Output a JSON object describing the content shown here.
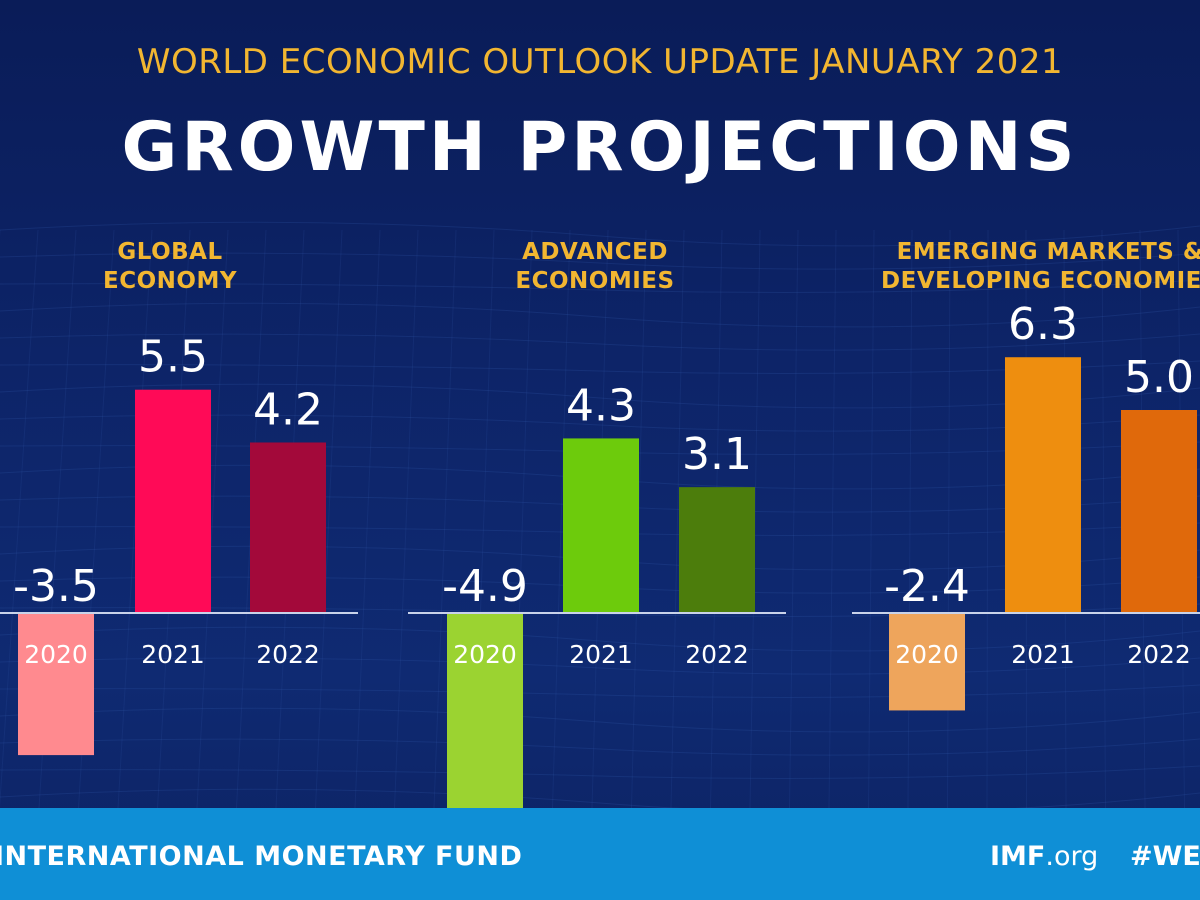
{
  "header": {
    "supertitle": "WORLD ECONOMIC OUTLOOK UPDATE JANUARY 2021",
    "title": "GROWTH PROJECTIONS"
  },
  "chart_data": [
    {
      "type": "bar",
      "title_lines": [
        "GLOBAL",
        "ECONOMY"
      ],
      "categories": [
        "2020",
        "2021",
        "2022"
      ],
      "values": [
        -3.5,
        5.5,
        4.2
      ],
      "labels": [
        "-3.5",
        "5.5",
        "4.2"
      ],
      "colors": [
        "#ff8a8f",
        "#ff0a57",
        "#a3093a"
      ],
      "ylabel": "%"
    },
    {
      "type": "bar",
      "title_lines": [
        "ADVANCED",
        "ECONOMIES"
      ],
      "categories": [
        "2020",
        "2021",
        "2022"
      ],
      "values": [
        -4.9,
        4.3,
        3.1
      ],
      "labels": [
        "-4.9",
        "4.3",
        "3.1"
      ],
      "colors": [
        "#9bd331",
        "#6dcb0c",
        "#4c7d0c"
      ],
      "ylabel": "%"
    },
    {
      "type": "bar",
      "title_lines": [
        "EMERGING MARKETS &",
        "DEVELOPING ECONOMIES"
      ],
      "categories": [
        "2020",
        "2021",
        "2022"
      ],
      "values": [
        -2.4,
        6.3,
        5.0
      ],
      "labels": [
        "-2.4",
        "6.3",
        "5.0"
      ],
      "colors": [
        "#eea55c",
        "#ee8e0f",
        "#e0690b"
      ],
      "ylabel": "%"
    }
  ],
  "footer": {
    "org": "INTERNATIONAL MONETARY FUND",
    "site_bold": "IMF",
    "site_light": ".org",
    "hashtag": "#WEO"
  },
  "colors": {
    "background": "#0b1e5b",
    "accent": "#f2b631",
    "footer": "#0f8fd6"
  }
}
